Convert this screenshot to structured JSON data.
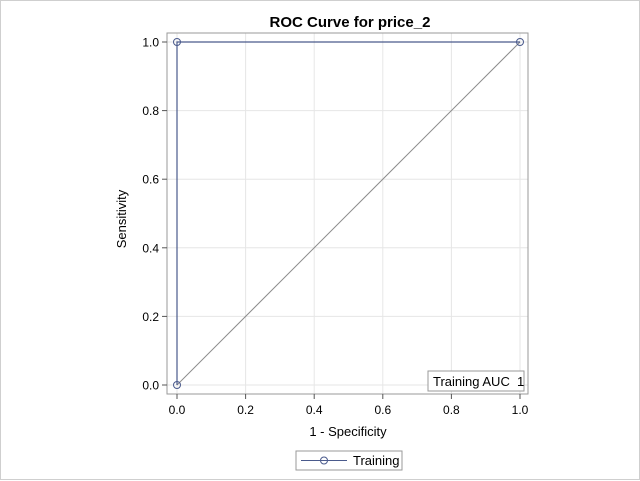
{
  "chart_data": {
    "type": "line",
    "title": "ROC Curve for price_2",
    "xlabel": "1 - Specificity",
    "ylabel": "Sensitivity",
    "xlim": [
      0,
      1
    ],
    "ylim": [
      0,
      1
    ],
    "xticks": [
      "0.0",
      "0.2",
      "0.4",
      "0.6",
      "0.8",
      "1.0"
    ],
    "yticks": [
      "0.0",
      "0.2",
      "0.4",
      "0.6",
      "0.8",
      "1.0"
    ],
    "grid": true,
    "series": [
      {
        "name": "Training",
        "x": [
          0,
          0,
          1
        ],
        "y": [
          0,
          1,
          1
        ],
        "color": "#4a5a8c",
        "marker": "circle"
      }
    ],
    "reference_line": {
      "x": [
        0,
        1
      ],
      "y": [
        0,
        1
      ],
      "color": "#8c8c8c"
    },
    "inset_label": "Training AUC  1",
    "inset_placement": "bottom-right",
    "legend_placement": "bottom"
  }
}
